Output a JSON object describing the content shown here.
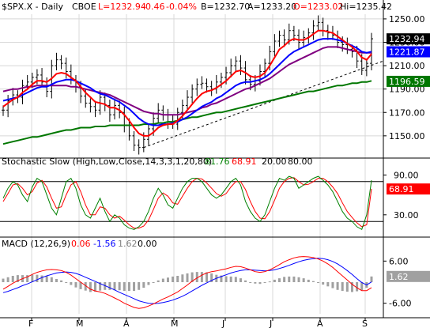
{
  "colors": {
    "price": "#000000",
    "ma_red": "#ff0000",
    "ma_blue": "#0000ff",
    "ma_purple": "#800080",
    "ma_green": "#007700",
    "stoch_green": "#008000",
    "stoch_red": "#ff0000",
    "macd_red": "#ff0000",
    "macd_blue": "#0000ff",
    "histogram": "#a0a0a0",
    "grid": "#d8d8d8"
  },
  "header": {
    "symbol": "$SPX.X - Daily",
    "exchange": "CBOE",
    "last": "L=1232.94",
    "change": "-0.46",
    "change_pct": "-0.04%",
    "bid": "B=1232.70",
    "ask": "A=1233.20",
    "open": "O=1233.02",
    "high": "Hi=1235.42"
  },
  "chart_data": [
    {
      "type": "line",
      "title": "$SPX.X - Daily",
      "x_labels": [
        "F",
        "M",
        "A",
        "M",
        "J",
        "J",
        "A",
        "S"
      ],
      "y_ticks": [
        "1250.00",
        "1230.00",
        "1210.00",
        "1190.00",
        "1170.00",
        "1150.00"
      ],
      "ylim": [
        1133,
        1254
      ],
      "badges": [
        {
          "text": "1232.94",
          "bg": "#000000",
          "value": 1232.94
        },
        {
          "text": "1221.87",
          "bg": "#0000ff",
          "value": 1221.87
        },
        {
          "text": "1196.59",
          "bg": "#007700",
          "value": 1196.59
        }
      ],
      "series": [
        {
          "key": "close",
          "type": "ohlc",
          "values": [
            1172,
            1180,
            1185,
            1183,
            1193,
            1196,
            1200,
            1202,
            1196,
            1188,
            1210,
            1215,
            1212,
            1205,
            1198,
            1192,
            1184,
            1178,
            1175,
            1172,
            1183,
            1176,
            1168,
            1176,
            1170,
            1159,
            1150,
            1142,
            1140,
            1147,
            1156,
            1165,
            1172,
            1168,
            1162,
            1160,
            1170,
            1176,
            1183,
            1190,
            1194,
            1195,
            1192,
            1190,
            1196,
            1200,
            1204,
            1210,
            1214,
            1208,
            1198,
            1194,
            1197,
            1205,
            1212,
            1222,
            1231,
            1236,
            1232,
            1240,
            1236,
            1230,
            1234,
            1238,
            1244,
            1247,
            1240,
            1238,
            1236,
            1230,
            1228,
            1224,
            1222,
            1214,
            1206,
            1212,
            1233
          ]
        },
        {
          "key": "ma_red",
          "values": [
            1175,
            1178,
            1181,
            1183,
            1187,
            1190,
            1194,
            1197,
            1197,
            1196,
            1199,
            1203,
            1204,
            1203,
            1200,
            1197,
            1192,
            1187,
            1183,
            1179,
            1178,
            1177,
            1174,
            1174,
            1172,
            1168,
            1163,
            1157,
            1152,
            1150,
            1150,
            1153,
            1157,
            1159,
            1160,
            1160,
            1163,
            1167,
            1172,
            1177,
            1182,
            1186,
            1188,
            1189,
            1191,
            1194,
            1197,
            1201,
            1205,
            1206,
            1204,
            1201,
            1200,
            1201,
            1204,
            1210,
            1217,
            1224,
            1227,
            1231,
            1233,
            1232,
            1232,
            1234,
            1237,
            1240,
            1240,
            1239,
            1238,
            1235,
            1232,
            1229,
            1226,
            1222,
            1217,
            1215,
            1220
          ]
        },
        {
          "key": "ma_blue",
          "values": [
            1180,
            1181,
            1182,
            1183,
            1185,
            1187,
            1189,
            1191,
            1192,
            1192,
            1194,
            1196,
            1197,
            1198,
            1198,
            1197,
            1195,
            1193,
            1191,
            1188,
            1186,
            1185,
            1183,
            1181,
            1179,
            1176,
            1173,
            1169,
            1165,
            1162,
            1160,
            1159,
            1159,
            1160,
            1160,
            1161,
            1162,
            1164,
            1166,
            1169,
            1172,
            1175,
            1177,
            1179,
            1182,
            1184,
            1187,
            1190,
            1193,
            1195,
            1196,
            1196,
            1197,
            1198,
            1200,
            1203,
            1207,
            1211,
            1215,
            1219,
            1222,
            1224,
            1226,
            1228,
            1230,
            1232,
            1233,
            1233,
            1233,
            1232,
            1231,
            1229,
            1227,
            1225,
            1222,
            1221,
            1222
          ]
        },
        {
          "key": "ma_purple",
          "values": [
            1188,
            1189,
            1190,
            1190,
            1191,
            1192,
            1192,
            1193,
            1193,
            1193,
            1193,
            1193,
            1193,
            1193,
            1192,
            1192,
            1191,
            1190,
            1189,
            1188,
            1187,
            1186,
            1185,
            1183,
            1181,
            1179,
            1177,
            1175,
            1173,
            1171,
            1170,
            1169,
            1169,
            1168,
            1168,
            1168,
            1168,
            1169,
            1170,
            1171,
            1172,
            1174,
            1175,
            1177,
            1178,
            1180,
            1182,
            1184,
            1186,
            1188,
            1190,
            1191,
            1193,
            1195,
            1197,
            1199,
            1202,
            1205,
            1208,
            1211,
            1213,
            1215,
            1217,
            1219,
            1221,
            1223,
            1225,
            1226,
            1226,
            1226,
            1225,
            1224,
            1223,
            1222,
            1221,
            1221,
            1221
          ]
        },
        {
          "key": "ma_green",
          "values": [
            1143,
            1144,
            1145,
            1146,
            1147,
            1148,
            1149,
            1149,
            1150,
            1151,
            1152,
            1153,
            1154,
            1155,
            1155,
            1156,
            1157,
            1157,
            1157,
            1158,
            1158,
            1158,
            1159,
            1159,
            1159,
            1159,
            1159,
            1159,
            1159,
            1160,
            1160,
            1160,
            1161,
            1161,
            1162,
            1162,
            1163,
            1164,
            1165,
            1166,
            1166,
            1167,
            1168,
            1169,
            1170,
            1170,
            1171,
            1172,
            1173,
            1174,
            1175,
            1176,
            1177,
            1178,
            1179,
            1180,
            1181,
            1182,
            1183,
            1184,
            1185,
            1186,
            1187,
            1188,
            1188,
            1189,
            1190,
            1191,
            1192,
            1193,
            1193,
            1194,
            1195,
            1195,
            1196,
            1196,
            1197
          ]
        }
      ],
      "trendline": [
        [
          29,
          1140
        ],
        [
          76,
          1210
        ]
      ]
    },
    {
      "type": "line",
      "title": "Stochastic Slow (High,Low,Close,14,3,3,1,20,80)",
      "values_text": [
        "81.76",
        "68.91",
        "20.00",
        "80.00"
      ],
      "y_ticks": [
        "90.00",
        "30.00"
      ],
      "ylim": [
        0,
        100
      ],
      "reference_lines": [
        20,
        80
      ],
      "badge": {
        "text": "68.91",
        "value": 68.91
      },
      "series": [
        {
          "key": "k",
          "values": [
            55,
            70,
            80,
            75,
            60,
            50,
            72,
            85,
            80,
            60,
            40,
            30,
            55,
            80,
            85,
            70,
            45,
            30,
            25,
            40,
            55,
            35,
            20,
            30,
            25,
            15,
            10,
            8,
            12,
            20,
            35,
            55,
            70,
            60,
            45,
            40,
            55,
            70,
            80,
            85,
            85,
            80,
            70,
            60,
            55,
            60,
            70,
            80,
            85,
            75,
            50,
            35,
            25,
            20,
            30,
            50,
            70,
            85,
            82,
            88,
            85,
            70,
            75,
            80,
            85,
            88,
            82,
            75,
            65,
            50,
            35,
            25,
            20,
            12,
            8,
            30,
            82
          ]
        },
        {
          "key": "d",
          "values": [
            50,
            62,
            75,
            77,
            70,
            60,
            65,
            78,
            82,
            72,
            55,
            40,
            42,
            60,
            75,
            80,
            65,
            45,
            30,
            30,
            42,
            40,
            30,
            25,
            28,
            22,
            15,
            10,
            10,
            13,
            22,
            38,
            55,
            63,
            58,
            48,
            46,
            58,
            70,
            80,
            85,
            84,
            78,
            70,
            62,
            58,
            62,
            72,
            80,
            80,
            68,
            50,
            35,
            25,
            24,
            35,
            52,
            70,
            80,
            85,
            86,
            80,
            75,
            76,
            80,
            85,
            85,
            80,
            72,
            62,
            48,
            35,
            26,
            18,
            12,
            15,
            69
          ]
        }
      ]
    },
    {
      "type": "line",
      "title": "MACD (12,26,9)",
      "values_text": [
        "0.06",
        "-1.56",
        "1.62",
        "0.00"
      ],
      "y_ticks": [
        "6.00",
        "-6.00"
      ],
      "ylim": [
        -9,
        9
      ],
      "badge": {
        "text": "1.62",
        "value": 1.62
      },
      "series": [
        {
          "key": "macd",
          "values": [
            -2,
            -1.2,
            -0.3,
            0.4,
            1.0,
            1.5,
            2.2,
            2.8,
            3.2,
            3.5,
            3.6,
            3.5,
            3.3,
            2.8,
            2.0,
            1.0,
            0,
            -1,
            -2,
            -2.5,
            -2.8,
            -3.2,
            -3.8,
            -4.5,
            -5.2,
            -6.0,
            -6.6,
            -7.2,
            -7.5,
            -7.3,
            -6.8,
            -6.2,
            -5.5,
            -4.8,
            -4.2,
            -3.5,
            -2.8,
            -1.8,
            -0.8,
            0.3,
            1.2,
            2.0,
            2.6,
            3.0,
            3.2,
            3.5,
            3.8,
            4.2,
            4.5,
            4.4,
            4.0,
            3.5,
            3.0,
            2.8,
            3.0,
            3.5,
            4.2,
            5.0,
            5.8,
            6.4,
            6.9,
            7.2,
            7.3,
            7.2,
            7.0,
            6.6,
            6.0,
            5.2,
            4.2,
            3.0,
            1.8,
            0.6,
            -0.6,
            -1.6,
            -2.4,
            -2.4,
            -1.56
          ]
        },
        {
          "key": "signal",
          "values": [
            -3,
            -2.6,
            -2.1,
            -1.6,
            -1.0,
            -0.5,
            0.1,
            0.7,
            1.3,
            1.8,
            2.2,
            2.6,
            2.8,
            2.9,
            2.8,
            2.5,
            2.0,
            1.4,
            0.8,
            0.2,
            -0.4,
            -1.0,
            -1.6,
            -2.2,
            -2.9,
            -3.5,
            -4.1,
            -4.7,
            -5.3,
            -5.7,
            -6.0,
            -6.1,
            -6.0,
            -5.8,
            -5.5,
            -5.1,
            -4.6,
            -4.0,
            -3.3,
            -2.5,
            -1.7,
            -0.9,
            -0.2,
            0.5,
            1.1,
            1.6,
            2.1,
            2.6,
            3.0,
            3.3,
            3.5,
            3.5,
            3.4,
            3.3,
            3.2,
            3.3,
            3.5,
            3.9,
            4.3,
            4.8,
            5.3,
            5.8,
            6.2,
            6.5,
            6.7,
            6.8,
            6.7,
            6.4,
            5.9,
            5.2,
            4.3,
            3.3,
            2.2,
            1.0,
            -0.1,
            -0.8,
            0.06
          ]
        },
        {
          "key": "histogram",
          "values": [
            1,
            1.4,
            1.8,
            2.0,
            2.0,
            2.0,
            2.1,
            2.1,
            1.9,
            1.7,
            1.4,
            0.9,
            0.5,
            -0.1,
            -0.8,
            -1.5,
            -2.0,
            -2.4,
            -2.8,
            -2.7,
            -2.4,
            -2.2,
            -2.2,
            -2.3,
            -2.3,
            -2.5,
            -2.5,
            -2.5,
            -2.2,
            -1.6,
            -0.8,
            -0.1,
            0.5,
            1.0,
            1.3,
            1.6,
            1.8,
            2.2,
            2.5,
            2.8,
            2.9,
            2.9,
            2.8,
            2.5,
            2.1,
            1.9,
            1.7,
            1.6,
            1.5,
            1.1,
            0.5,
            0,
            -0.4,
            -0.5,
            -0.2,
            0.2,
            0.7,
            1.1,
            1.5,
            1.6,
            1.6,
            1.4,
            1.1,
            0.7,
            0.3,
            -0.2,
            -0.7,
            -1.2,
            -1.7,
            -2.2,
            -2.5,
            -2.7,
            -2.8,
            -2.6,
            -2.3,
            -1.6,
            1.62
          ]
        }
      ]
    }
  ]
}
